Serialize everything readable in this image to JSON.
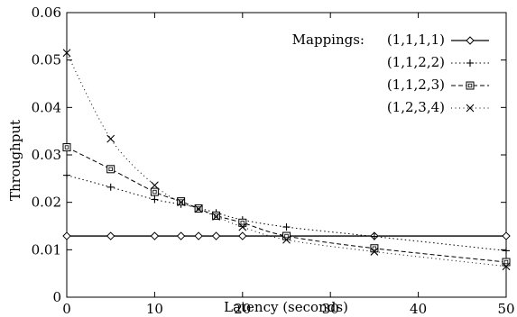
{
  "chart_data": {
    "type": "line",
    "title": "",
    "xlabel": "Latency (seconds)",
    "ylabel": "Throughput",
    "xlim": [
      0,
      50
    ],
    "ylim": [
      0,
      0.06
    ],
    "xticks": [
      0,
      10,
      20,
      30,
      40,
      50
    ],
    "yticks": [
      0,
      0.01,
      0.02,
      0.03,
      0.04,
      0.05,
      0.06
    ],
    "xtick_labels": [
      "0",
      "10",
      "20",
      "30",
      "40",
      "50"
    ],
    "ytick_labels": [
      "0",
      "0.01",
      "0.02",
      "0.03",
      "0.04",
      "0.05",
      "0.06"
    ],
    "grid": false,
    "legend_title": "Mappings:",
    "legend_position": "top-right",
    "series": [
      {
        "name": "(1,1,1,1)",
        "marker": "diamond",
        "line": "solid",
        "x": [
          0,
          5,
          10,
          13,
          15,
          17,
          20,
          25,
          35,
          50
        ],
        "y": [
          0.0129,
          0.0129,
          0.0129,
          0.0129,
          0.0129,
          0.0129,
          0.0129,
          0.0129,
          0.0129,
          0.0129
        ]
      },
      {
        "name": "(1,1,2,2)",
        "marker": "plus",
        "line": "dotted",
        "x": [
          0,
          5,
          10,
          13,
          15,
          17,
          20,
          25,
          35,
          50
        ],
        "y": [
          0.0257,
          0.0232,
          0.0206,
          0.0196,
          0.0188,
          0.0178,
          0.0163,
          0.0148,
          0.0128,
          0.0098
        ]
      },
      {
        "name": "(1,1,2,3)",
        "marker": "square",
        "line": "dashed",
        "x": [
          0,
          5,
          10,
          13,
          15,
          17,
          20,
          25,
          35,
          50
        ],
        "y": [
          0.0316,
          0.027,
          0.0222,
          0.0202,
          0.0187,
          0.0172,
          0.0157,
          0.0129,
          0.0103,
          0.0074
        ]
      },
      {
        "name": "(1,2,3,4)",
        "marker": "cross",
        "line": "dotted-fine",
        "x": [
          0,
          5,
          10,
          13,
          15,
          17,
          20,
          25,
          35,
          50
        ],
        "y": [
          0.0515,
          0.0334,
          0.0236,
          0.02,
          0.0186,
          0.017,
          0.0148,
          0.0121,
          0.0096,
          0.0065
        ]
      }
    ]
  }
}
